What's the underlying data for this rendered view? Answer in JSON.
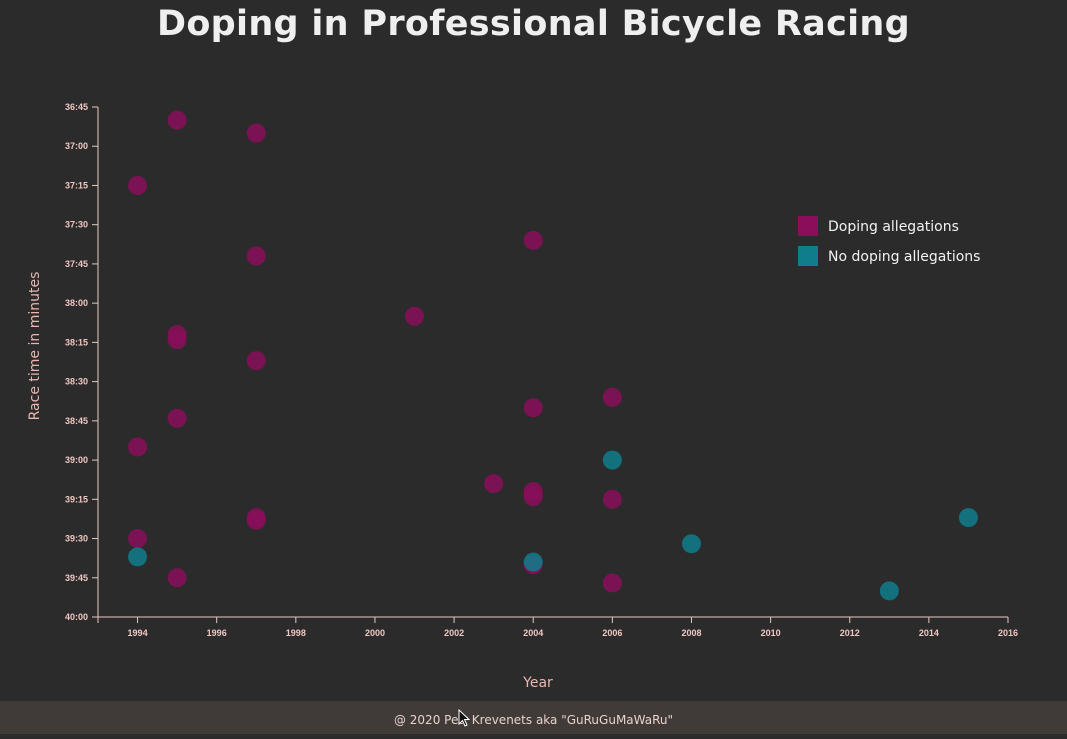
{
  "title": "Doping in Professional Bicycle Racing",
  "footer": "@ 2020 Petr Krevenets aka \"GuRuGuMaWaRu\"",
  "colors": {
    "background": "#2b2b2b",
    "doping": "#8a0e5a",
    "clean": "#0f7d8c",
    "axis": "#e8c8c3",
    "footer_bg": "#403b39"
  },
  "chart_data": {
    "type": "scatter",
    "title": "Doping in Professional Bicycle Racing",
    "xlabel": "Year",
    "ylabel": "Race time in minutes",
    "xlim": [
      1993,
      2016
    ],
    "ylim": [
      "36:45",
      "40:00"
    ],
    "x_ticks": [
      "1994",
      "1996",
      "1998",
      "2000",
      "2002",
      "2004",
      "2006",
      "2008",
      "2010",
      "2012",
      "2014",
      "2016"
    ],
    "y_ticks": [
      "36:45",
      "37:00",
      "37:15",
      "37:30",
      "37:45",
      "38:00",
      "38:15",
      "38:30",
      "38:45",
      "39:00",
      "39:15",
      "39:30",
      "39:45",
      "40:00"
    ],
    "legend": {
      "position": "top-right",
      "entries": [
        "Doping allegations",
        "No doping allegations"
      ]
    },
    "series": [
      {
        "name": "Doping allegations",
        "color": "#8a0e5a",
        "points": [
          {
            "x": 1995,
            "y": "36:50"
          },
          {
            "x": 1997,
            "y": "36:55"
          },
          {
            "x": 1994,
            "y": "37:15"
          },
          {
            "x": 2004,
            "y": "37:36"
          },
          {
            "x": 1997,
            "y": "37:42"
          },
          {
            "x": 2001,
            "y": "38:05"
          },
          {
            "x": 1995,
            "y": "38:12"
          },
          {
            "x": 1995,
            "y": "38:14"
          },
          {
            "x": 1997,
            "y": "38:22"
          },
          {
            "x": 2006,
            "y": "38:36"
          },
          {
            "x": 2004,
            "y": "38:40"
          },
          {
            "x": 1995,
            "y": "38:44"
          },
          {
            "x": 1994,
            "y": "38:55"
          },
          {
            "x": 2003,
            "y": "39:09"
          },
          {
            "x": 2004,
            "y": "39:12"
          },
          {
            "x": 2004,
            "y": "39:14"
          },
          {
            "x": 2006,
            "y": "39:15"
          },
          {
            "x": 1997,
            "y": "39:22"
          },
          {
            "x": 1997,
            "y": "39:23"
          },
          {
            "x": 1994,
            "y": "39:30"
          },
          {
            "x": 2004,
            "y": "39:40"
          },
          {
            "x": 1995,
            "y": "39:45"
          },
          {
            "x": 2006,
            "y": "39:47"
          }
        ]
      },
      {
        "name": "No doping allegations",
        "color": "#0f7d8c",
        "points": [
          {
            "x": 2006,
            "y": "39:00"
          },
          {
            "x": 2015,
            "y": "39:22"
          },
          {
            "x": 2008,
            "y": "39:32"
          },
          {
            "x": 1994,
            "y": "39:37"
          },
          {
            "x": 2004,
            "y": "39:39"
          },
          {
            "x": 2013,
            "y": "39:50"
          }
        ]
      }
    ]
  }
}
